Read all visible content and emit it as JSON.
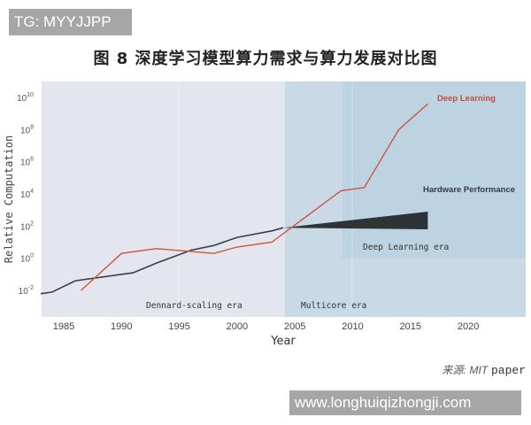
{
  "watermark_top": "TG: MYYJJPP",
  "watermark_bottom": "www.longhuiqizhongji.com",
  "figure_title": "图 8 深度学习模型算力需求与算力发展对比图",
  "source": {
    "prefix": "来源:",
    "org": "MIT",
    "suffix": "paper"
  },
  "chart_data": {
    "type": "line",
    "title": "图 8 深度学习模型算力需求与算力发展对比图",
    "xlabel": "Year",
    "ylabel": "Relative Computation",
    "yscale": "log",
    "xlim": [
      1983,
      2025
    ],
    "ylim_exponent": [
      -3,
      11
    ],
    "x_ticks": [
      "1985",
      "1990",
      "1995",
      "2000",
      "2005",
      "2010",
      "2015",
      "2020"
    ],
    "y_ticks": [
      "10^-2",
      "10^0",
      "10^2",
      "10^4",
      "10^6",
      "10^8",
      "10^10"
    ],
    "grid": false,
    "eras": [
      {
        "label": "Dennard-scaling era",
        "start": 1983,
        "end": 2004,
        "color": "#e3e6ef"
      },
      {
        "label": "Multicore era",
        "start": 2004,
        "end": 2025,
        "color": "#c9d9e6"
      },
      {
        "label": "Deep Learning era",
        "start": 2009,
        "end": 2025,
        "color": "#bdd3e2"
      }
    ],
    "series": [
      {
        "name": "Deep Learning",
        "color": "#d0533d",
        "x": [
          1986.5,
          1990,
          1993,
          1998,
          2000,
          2003,
          2009,
          2011,
          2014,
          2016.5
        ],
        "log10_y": [
          -2.0,
          0.3,
          0.6,
          0.3,
          0.7,
          1.0,
          4.2,
          4.4,
          8.0,
          9.6
        ]
      },
      {
        "name": "Hardware Performance",
        "color": "#2b2f33",
        "x": [
          1983,
          1984,
          1986,
          1989,
          1991,
          1993,
          1996,
          1998,
          2000,
          2003,
          2004
        ],
        "log10_y": [
          -2.2,
          -2.1,
          -1.4,
          -1.1,
          -0.9,
          -0.3,
          0.5,
          0.8,
          1.3,
          1.7,
          1.9
        ],
        "band": {
          "x": [
            2004,
            2016.5
          ],
          "log10_upper": [
            1.9,
            2.9
          ],
          "log10_lower": [
            1.9,
            1.8
          ]
        }
      }
    ],
    "annotations": [
      "Deep Learning",
      "Hardware Performance",
      "Dennard-scaling era",
      "Multicore era",
      "Deep Learning era"
    ]
  }
}
